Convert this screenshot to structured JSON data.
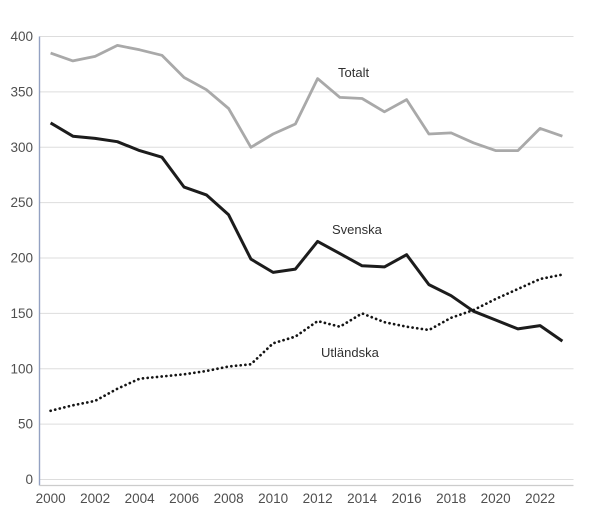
{
  "chart_data": {
    "type": "line",
    "x": [
      2000,
      2001,
      2002,
      2003,
      2004,
      2005,
      2006,
      2007,
      2008,
      2009,
      2010,
      2011,
      2012,
      2013,
      2014,
      2015,
      2016,
      2017,
      2018,
      2019,
      2020,
      2021,
      2022,
      2023
    ],
    "xtick_labels": [
      "2000",
      "2002",
      "2004",
      "2006",
      "2008",
      "2010",
      "2012",
      "2014",
      "2016",
      "2018",
      "2020",
      "2022"
    ],
    "ytick_values": [
      0,
      50,
      100,
      150,
      200,
      250,
      300,
      350,
      400
    ],
    "ylim": [
      0,
      400
    ],
    "grid": true,
    "legend_position": "inline-annotations",
    "series": [
      {
        "name": "Totalt",
        "style": "solid",
        "color": "#a9a9a9",
        "width": 2.8,
        "values": [
          385,
          378,
          382,
          392,
          388,
          383,
          363,
          352,
          335,
          300,
          312,
          321,
          362,
          345,
          344,
          332,
          343,
          312,
          313,
          304,
          297,
          297,
          317,
          310
        ]
      },
      {
        "name": "Svenska",
        "style": "solid",
        "color": "#1c1c1c",
        "width": 3,
        "values": [
          322,
          310,
          308,
          305,
          297,
          291,
          264,
          257,
          239,
          199,
          187,
          190,
          215,
          204,
          193,
          192,
          203,
          176,
          166,
          152,
          144,
          136,
          139,
          125
        ]
      },
      {
        "name": "Utländska",
        "style": "dotted",
        "color": "#141414",
        "width": 2.7,
        "values": [
          62,
          67,
          71,
          82,
          91,
          93,
          95,
          98,
          102,
          104,
          123,
          129,
          143,
          138,
          150,
          142,
          138,
          135,
          146,
          153,
          163,
          172,
          181,
          185
        ]
      }
    ],
    "annotations": [
      {
        "text": "Totalt"
      },
      {
        "text": "Svenska"
      },
      {
        "text": "Utländska"
      }
    ],
    "colors": {
      "value_axis_line": "#93a1c2",
      "category_axis_line": "#cccccc",
      "gridline": "#dddddd",
      "tick_text": "#4f4f4f",
      "border": "#d4d4d4",
      "background": "#ffffff"
    }
  }
}
